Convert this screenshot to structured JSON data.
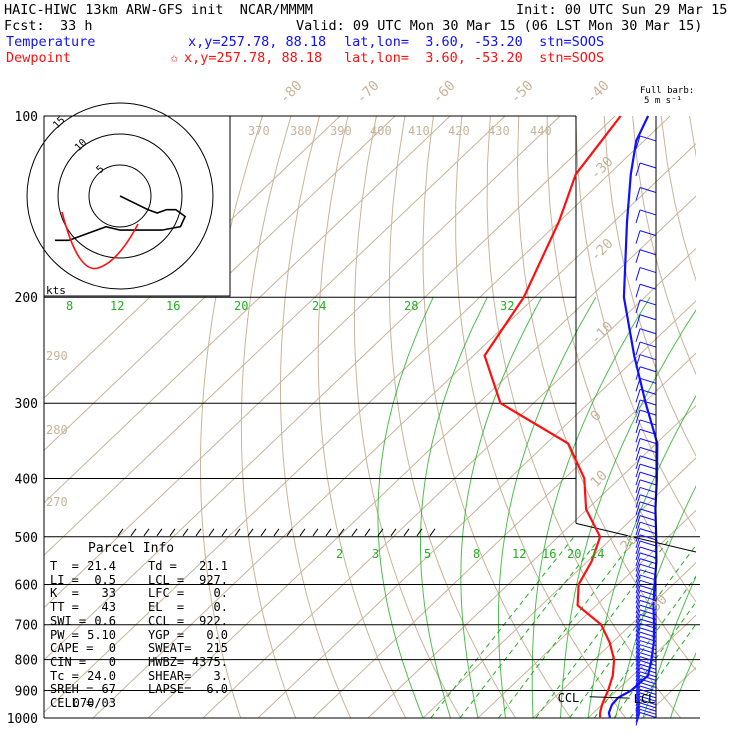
{
  "header": {
    "model": "HAIC-HIWC 13km ARW-GFS init  NCAR/MMMM",
    "init": "Init: 00 UTC Sun 29 Mar 15",
    "fcst_label": "Fcst:",
    "fcst_value": "33 h",
    "valid": "Valid: 09 UTC Mon 30 Mar 15 (06 LST Mon 30 Mar 15)",
    "temp_label": "Temperature",
    "temp_coords": "x,y=257.78, 88.18",
    "temp_latlon": "lat,lon=  3.60, -53.20  stn=SOOS",
    "dew_label": "Dewpoint",
    "dew_star": "✩",
    "dew_coords": "x,y=257.78, 88.18",
    "dew_latlon": "lat,lon=  3.60, -53.20  stn=SOOS"
  },
  "barb_key": {
    "line1": "Full barb:",
    "line2": "5 m s⁻¹"
  },
  "hodograph": {
    "rings": [
      "5",
      "10",
      "15"
    ],
    "units": "kts"
  },
  "parcel": {
    "title": "Parcel Info",
    "rows": [
      [
        "T  =",
        "21.4",
        "Td =",
        "21.1"
      ],
      [
        "LI =",
        "0.5",
        "LCL =",
        "927."
      ],
      [
        "K  =",
        "33",
        "LFC =",
        "0."
      ],
      [
        "TT =",
        "43",
        "EL  =",
        "0."
      ],
      [
        "SWI =",
        "0.6",
        "CCL =",
        "922."
      ],
      [
        "PW =",
        "5.10",
        "YGP =",
        "0.0"
      ],
      [
        "CAPE =",
        "0",
        "SWEAT=",
        "215"
      ],
      [
        "CIN =",
        "0",
        "HWBZ=",
        "4375."
      ],
      [
        "Tc =",
        "24.0",
        "SHEAR=",
        "3."
      ],
      [
        "SREH =",
        "67",
        "LAPSE=",
        "6.0"
      ],
      [
        "CELL =",
        "070/03",
        "",
        ""
      ]
    ]
  },
  "levels": {
    "ccl_label": "CCL",
    "lcl_label": "LCL"
  },
  "colors": {
    "temperature": "#1010ff",
    "dewpoint": "#ff1010",
    "isotherm_dry": "#c8b49a",
    "mixing_ratio": "#20b020",
    "theta_e": "#dcd0c0"
  },
  "chart_data": {
    "type": "line",
    "title": "",
    "xlabel": "",
    "ylabel": "",
    "y_scale": "log",
    "pressure_ticks": [
      "100",
      "200",
      "300",
      "400",
      "500",
      "600",
      "700",
      "800",
      "900",
      "1000"
    ],
    "pressure_range": [
      1000,
      100
    ],
    "isotherm_labels_top": [
      "-80",
      "-70",
      "-60",
      "-50",
      "-40"
    ],
    "isotherm_labels_right": [
      "-30",
      "-20",
      "-10",
      "0",
      "10",
      "20",
      "30",
      "40"
    ],
    "theta_labels": [
      "370",
      "380",
      "390",
      "400",
      "410",
      "420",
      "430",
      "440"
    ],
    "theta_left_labels": [
      "290",
      "280",
      "270"
    ],
    "mixing_ratio_labels_upper": [
      "8",
      "12",
      "16",
      "20",
      "24",
      "28",
      "32"
    ],
    "mixing_ratio_labels_lower": [
      "2",
      "3",
      "5",
      "8",
      "12",
      "16",
      "20",
      "24"
    ],
    "series": [
      {
        "name": "Temperature",
        "points": [
          [
            1000,
            24.0
          ],
          [
            980,
            22.8
          ],
          [
            950,
            21.8
          ],
          [
            925,
            21.6
          ],
          [
            900,
            22.6
          ],
          [
            850,
            22.8
          ],
          [
            800,
            20.4
          ],
          [
            750,
            17.6
          ],
          [
            700,
            14.2
          ],
          [
            650,
            10.4
          ],
          [
            600,
            6.6
          ],
          [
            550,
            2.6
          ],
          [
            500,
            -2.2
          ],
          [
            450,
            -7.6
          ],
          [
            400,
            -13.2
          ],
          [
            350,
            -19.8
          ],
          [
            300,
            -29.6
          ],
          [
            250,
            -40.8
          ],
          [
            200,
            -53.8
          ],
          [
            150,
            -67.6
          ],
          [
            125,
            -76.0
          ],
          [
            110,
            -81.4
          ],
          [
            100,
            -84.0
          ]
        ]
      },
      {
        "name": "Dewpoint",
        "points": [
          [
            1000,
            22.2
          ],
          [
            980,
            21.2
          ],
          [
            950,
            20.0
          ],
          [
            925,
            19.2
          ],
          [
            900,
            18.4
          ],
          [
            850,
            16.4
          ],
          [
            800,
            13.6
          ],
          [
            750,
            9.6
          ],
          [
            700,
            4.6
          ],
          [
            650,
            -3.4
          ],
          [
            600,
            -7.2
          ],
          [
            550,
            -9.2
          ],
          [
            500,
            -12.4
          ],
          [
            450,
            -20.2
          ],
          [
            400,
            -26.4
          ],
          [
            350,
            -36.0
          ],
          [
            300,
            -56.0
          ],
          [
            250,
            -68.0
          ],
          [
            200,
            -72.0
          ],
          [
            150,
            -80.0
          ],
          [
            125,
            -86.0
          ],
          [
            100,
            -89.0
          ]
        ]
      }
    ],
    "hodograph_path_kts": [
      [
        0,
        0
      ],
      [
        3,
        2
      ],
      [
        6,
        4
      ],
      [
        8,
        5
      ],
      [
        10,
        4
      ],
      [
        12,
        4
      ],
      [
        14,
        6
      ],
      [
        13,
        9
      ],
      [
        9,
        10
      ],
      [
        5,
        10
      ],
      [
        0,
        10
      ],
      [
        -3,
        9
      ],
      [
        -7,
        11
      ],
      [
        -11,
        13
      ],
      [
        -14,
        13
      ]
    ]
  }
}
